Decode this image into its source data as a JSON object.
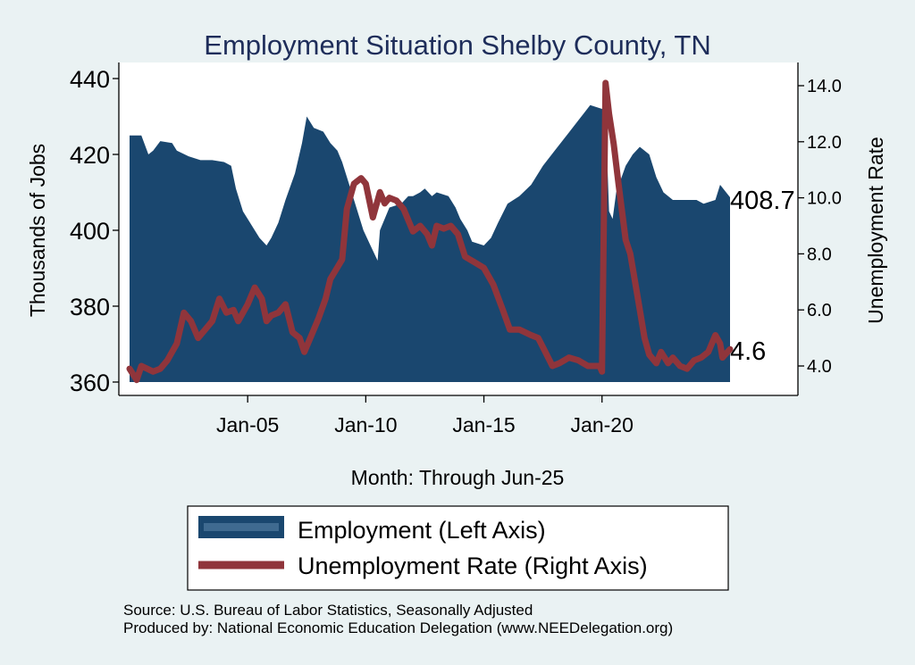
{
  "chart_data": {
    "type": "bar+line",
    "title": "Employment Situation Shelby  County, TN",
    "xlabel": "Month: Through Jun-25",
    "ylabel_left": "Thousands of Jobs",
    "ylabel_right": "Unemployment Rate",
    "x_ticks": [
      {
        "label": "Jan-05",
        "t": 2005.0
      },
      {
        "label": "Jan-10",
        "t": 2010.0
      },
      {
        "label": "Jan-15",
        "t": 2015.0
      },
      {
        "label": "Jan-20",
        "t": 2020.0
      }
    ],
    "x_range": [
      2000.0,
      2025.42
    ],
    "left_axis": {
      "min": 360,
      "max": 440,
      "ticks": [
        "360",
        "380",
        "400",
        "420",
        "440"
      ]
    },
    "right_axis": {
      "min": 3.5,
      "max": 14.3,
      "ticks": [
        "4.0",
        "6.0",
        "8.0",
        "10.0",
        "12.0",
        "14.0"
      ]
    },
    "colors": {
      "background": "#eaf2f3",
      "plot": "#ffffff",
      "employment": "#1a476f",
      "unemployment": "#90353b",
      "title": "#1e2d5a"
    },
    "series": [
      {
        "name": "Employment (Left Axis)",
        "axis": "left",
        "points": [
          [
            2000.0,
            425
          ],
          [
            2000.5,
            425
          ],
          [
            2000.8,
            420
          ],
          [
            2001.0,
            421
          ],
          [
            2001.3,
            423.5
          ],
          [
            2001.8,
            423
          ],
          [
            2002.0,
            421
          ],
          [
            2002.5,
            419.5
          ],
          [
            2003.0,
            418.5
          ],
          [
            2003.5,
            418.5
          ],
          [
            2004.0,
            418
          ],
          [
            2004.3,
            417
          ],
          [
            2004.5,
            411
          ],
          [
            2004.8,
            405
          ],
          [
            2005.0,
            403
          ],
          [
            2005.3,
            400
          ],
          [
            2005.5,
            398
          ],
          [
            2005.8,
            396
          ],
          [
            2006.0,
            398
          ],
          [
            2006.3,
            402
          ],
          [
            2006.6,
            408
          ],
          [
            2007.0,
            415
          ],
          [
            2007.3,
            423
          ],
          [
            2007.5,
            430
          ],
          [
            2007.8,
            427
          ],
          [
            2008.2,
            426
          ],
          [
            2008.5,
            423
          ],
          [
            2008.8,
            421
          ],
          [
            2009.0,
            418
          ],
          [
            2009.3,
            412
          ],
          [
            2009.6,
            406
          ],
          [
            2009.9,
            400
          ],
          [
            2010.2,
            396
          ],
          [
            2010.5,
            392
          ],
          [
            2010.6,
            400
          ],
          [
            2011.0,
            406
          ],
          [
            2011.5,
            407
          ],
          [
            2011.8,
            409
          ],
          [
            2012.0,
            409
          ],
          [
            2012.3,
            410
          ],
          [
            2012.5,
            411
          ],
          [
            2012.8,
            409
          ],
          [
            2013.0,
            410
          ],
          [
            2013.5,
            409
          ],
          [
            2013.8,
            406
          ],
          [
            2014.0,
            403
          ],
          [
            2014.3,
            400
          ],
          [
            2014.5,
            397
          ],
          [
            2015.0,
            396
          ],
          [
            2015.3,
            398
          ],
          [
            2015.6,
            402
          ],
          [
            2016.0,
            407
          ],
          [
            2016.5,
            409
          ],
          [
            2017.0,
            412
          ],
          [
            2017.5,
            417
          ],
          [
            2018.0,
            421
          ],
          [
            2018.5,
            425
          ],
          [
            2019.0,
            429
          ],
          [
            2019.5,
            433
          ],
          [
            2020.0,
            432
          ],
          [
            2020.15,
            431
          ],
          [
            2020.3,
            405
          ],
          [
            2020.45,
            403
          ],
          [
            2020.6,
            410
          ],
          [
            2021.0,
            417
          ],
          [
            2021.3,
            420
          ],
          [
            2021.6,
            422
          ],
          [
            2022.0,
            420
          ],
          [
            2022.3,
            414
          ],
          [
            2022.6,
            410
          ],
          [
            2023.0,
            408
          ],
          [
            2023.5,
            408
          ],
          [
            2024.0,
            408
          ],
          [
            2024.3,
            407
          ],
          [
            2024.8,
            408
          ],
          [
            2025.0,
            412
          ],
          [
            2025.42,
            408.7
          ]
        ]
      },
      {
        "name": "Unemployment Rate (Right Axis)",
        "axis": "right",
        "points": [
          [
            2000.0,
            3.9
          ],
          [
            2000.3,
            3.5
          ],
          [
            2000.5,
            4.0
          ],
          [
            2001.0,
            3.8
          ],
          [
            2001.3,
            3.9
          ],
          [
            2001.6,
            4.2
          ],
          [
            2002.0,
            4.8
          ],
          [
            2002.3,
            5.9
          ],
          [
            2002.6,
            5.6
          ],
          [
            2002.9,
            5.0
          ],
          [
            2003.2,
            5.3
          ],
          [
            2003.5,
            5.6
          ],
          [
            2003.8,
            6.4
          ],
          [
            2004.1,
            5.9
          ],
          [
            2004.4,
            6.0
          ],
          [
            2004.6,
            5.6
          ],
          [
            2005.0,
            6.2
          ],
          [
            2005.3,
            6.8
          ],
          [
            2005.6,
            6.4
          ],
          [
            2005.8,
            5.6
          ],
          [
            2006.0,
            5.8
          ],
          [
            2006.3,
            5.9
          ],
          [
            2006.6,
            6.2
          ],
          [
            2006.9,
            5.2
          ],
          [
            2007.2,
            5.0
          ],
          [
            2007.4,
            4.5
          ],
          [
            2007.7,
            5.1
          ],
          [
            2008.0,
            5.7
          ],
          [
            2008.3,
            6.4
          ],
          [
            2008.5,
            7.1
          ],
          [
            2009.0,
            7.8
          ],
          [
            2009.2,
            9.6
          ],
          [
            2009.5,
            10.5
          ],
          [
            2009.8,
            10.7
          ],
          [
            2010.0,
            10.5
          ],
          [
            2010.3,
            9.3
          ],
          [
            2010.6,
            10.2
          ],
          [
            2010.8,
            9.8
          ],
          [
            2011.0,
            10.0
          ],
          [
            2011.3,
            9.9
          ],
          [
            2011.6,
            9.6
          ],
          [
            2012.0,
            8.8
          ],
          [
            2012.3,
            9.0
          ],
          [
            2012.6,
            8.7
          ],
          [
            2012.8,
            8.3
          ],
          [
            2013.0,
            9.0
          ],
          [
            2013.3,
            8.9
          ],
          [
            2013.6,
            9.0
          ],
          [
            2013.9,
            8.7
          ],
          [
            2014.2,
            7.9
          ],
          [
            2014.6,
            7.7
          ],
          [
            2015.0,
            7.5
          ],
          [
            2015.4,
            6.9
          ],
          [
            2015.8,
            6.0
          ],
          [
            2016.1,
            5.3
          ],
          [
            2016.5,
            5.3
          ],
          [
            2017.0,
            5.1
          ],
          [
            2017.3,
            5.0
          ],
          [
            2017.6,
            4.5
          ],
          [
            2017.9,
            4.0
          ],
          [
            2018.2,
            4.1
          ],
          [
            2018.6,
            4.3
          ],
          [
            2019.0,
            4.2
          ],
          [
            2019.4,
            4.0
          ],
          [
            2019.9,
            4.0
          ],
          [
            2020.0,
            3.8
          ],
          [
            2020.15,
            14.1
          ],
          [
            2020.3,
            13.0
          ],
          [
            2020.5,
            11.9
          ],
          [
            2020.7,
            10.5
          ],
          [
            2021.0,
            8.5
          ],
          [
            2021.2,
            8.0
          ],
          [
            2021.5,
            6.5
          ],
          [
            2021.8,
            5.0
          ],
          [
            2022.0,
            4.4
          ],
          [
            2022.3,
            4.1
          ],
          [
            2022.5,
            4.5
          ],
          [
            2022.8,
            4.1
          ],
          [
            2023.0,
            4.3
          ],
          [
            2023.3,
            4.0
          ],
          [
            2023.6,
            3.9
          ],
          [
            2023.9,
            4.2
          ],
          [
            2024.2,
            4.3
          ],
          [
            2024.5,
            4.5
          ],
          [
            2024.8,
            5.1
          ],
          [
            2025.0,
            4.8
          ],
          [
            2025.1,
            4.3
          ],
          [
            2025.42,
            4.6
          ]
        ]
      }
    ],
    "end_labels": {
      "employment": "408.7",
      "unemployment": "4.6"
    },
    "legend": {
      "position": "bottom",
      "items": [
        "Employment (Left Axis)",
        "Unemployment Rate (Right Axis)"
      ]
    },
    "source_line": "Source: U.S. Bureau of Labor Statistics, Seasonally Adjusted",
    "produced_line": "Produced by: National Economic Education Delegation (www.NEEDelegation.org)"
  }
}
